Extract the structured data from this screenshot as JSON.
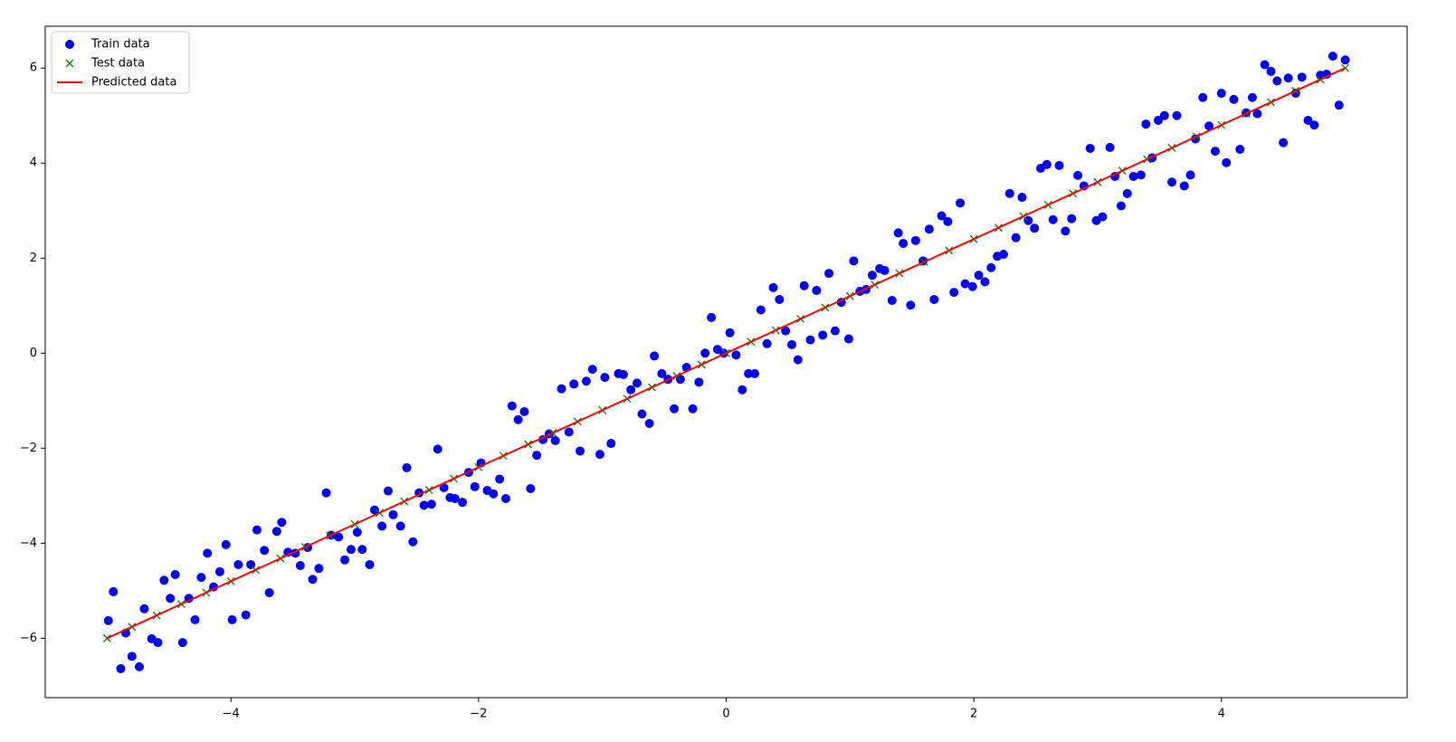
{
  "chart_data": {
    "type": "scatter",
    "xlim": [
      -5.5,
      5.5
    ],
    "ylim": [
      -7.25,
      6.88
    ],
    "xticks": [
      {
        "value": -4,
        "label": "−4"
      },
      {
        "value": -2,
        "label": "−2"
      },
      0,
      2,
      4
    ],
    "yticks": [
      {
        "value": -6,
        "label": "−6"
      },
      {
        "value": -4,
        "label": "−4"
      },
      {
        "value": -2,
        "label": "−2"
      },
      0,
      2,
      4,
      6
    ],
    "legend": "upper left",
    "series": [
      {
        "name": "Train data",
        "color": "#0000ff",
        "marker": "o",
        "x": [
          -4.99,
          -4.95,
          -4.89,
          -4.85,
          -4.8,
          -4.74,
          -4.7,
          -4.64,
          -4.59,
          -4.54,
          -4.49,
          -4.45,
          -4.39,
          -4.34,
          -4.29,
          -4.24,
          -4.19,
          -4.14,
          -4.09,
          -4.04,
          -3.99,
          -3.94,
          -3.88,
          -3.84,
          -3.79,
          -3.73,
          -3.69,
          -3.63,
          -3.59,
          -3.54,
          -3.48,
          -3.44,
          -3.38,
          -3.34,
          -3.29,
          -3.23,
          -3.19,
          -3.13,
          -3.08,
          -3.03,
          -2.98,
          -2.94,
          -2.88,
          -2.84,
          -2.78,
          -2.73,
          -2.69,
          -2.63,
          -2.58,
          -2.53,
          -2.48,
          -2.44,
          -2.38,
          -2.33,
          -2.28,
          -2.23,
          -2.19,
          -2.13,
          -2.08,
          -2.03,
          -1.98,
          -1.93,
          -1.88,
          -1.83,
          -1.78,
          -1.73,
          -1.68,
          -1.63,
          -1.58,
          -1.53,
          -1.48,
          -1.43,
          -1.38,
          -1.33,
          -1.27,
          -1.23,
          -1.18,
          -1.13,
          -1.08,
          -1.02,
          -0.98,
          -0.93,
          -0.87,
          -0.83,
          -0.77,
          -0.72,
          -0.68,
          -0.62,
          -0.58,
          -0.52,
          -0.47,
          -0.42,
          -0.37,
          -0.32,
          -0.27,
          -0.22,
          -0.17,
          -0.12,
          -0.07,
          -0.02,
          0.03,
          0.08,
          0.13,
          0.18,
          0.23,
          0.28,
          0.33,
          0.38,
          0.43,
          0.48,
          0.53,
          0.58,
          0.63,
          0.68,
          0.73,
          0.78,
          0.83,
          0.88,
          0.93,
          0.99,
          1.03,
          1.08,
          1.13,
          1.18,
          1.24,
          1.28,
          1.34,
          1.39,
          1.43,
          1.49,
          1.53,
          1.59,
          1.64,
          1.68,
          1.74,
          1.79,
          1.84,
          1.89,
          1.93,
          1.99,
          2.04,
          2.09,
          2.14,
          2.19,
          2.24,
          2.29,
          2.34,
          2.39,
          2.44,
          2.49,
          2.54,
          2.59,
          2.64,
          2.69,
          2.74,
          2.79,
          2.84,
          2.89,
          2.94,
          2.99,
          3.04,
          3.1,
          3.14,
          3.19,
          3.24,
          3.29,
          3.35,
          3.39,
          3.44,
          3.49,
          3.54,
          3.6,
          3.64,
          3.7,
          3.75,
          3.79,
          3.85,
          3.9,
          3.95,
          4.0,
          4.04,
          4.1,
          4.15,
          4.2,
          4.25,
          4.29,
          4.35,
          4.4,
          4.45,
          4.5,
          4.54,
          4.6,
          4.65,
          4.7,
          4.75,
          4.8,
          4.85,
          4.9,
          4.95,
          5.0
        ],
        "values": [
          -5.63,
          -5.02,
          -6.64,
          -5.89,
          -6.38,
          -6.6,
          -5.38,
          -6.01,
          -6.09,
          -4.78,
          -5.16,
          -4.66,
          -6.09,
          -5.16,
          -5.61,
          -4.72,
          -4.21,
          -4.92,
          -4.6,
          -4.03,
          -5.61,
          -4.45,
          -5.51,
          -4.45,
          -3.72,
          -4.15,
          -5.04,
          -3.75,
          -3.56,
          -4.19,
          -4.21,
          -4.47,
          -4.09,
          -4.76,
          -4.53,
          -2.94,
          -3.83,
          -3.87,
          -4.35,
          -4.13,
          -3.77,
          -4.13,
          -4.45,
          -3.3,
          -3.64,
          -2.9,
          -3.4,
          -3.64,
          -2.41,
          -3.97,
          -2.94,
          -3.2,
          -3.18,
          -2.02,
          -2.83,
          -3.04,
          -3.06,
          -3.14,
          -2.51,
          -2.81,
          -2.31,
          -2.89,
          -2.96,
          -2.65,
          -3.06,
          -1.11,
          -1.4,
          -1.23,
          -2.85,
          -2.15,
          -1.82,
          -1.7,
          -1.84,
          -0.75,
          -1.66,
          -0.65,
          -2.06,
          -0.59,
          -0.34,
          -2.13,
          -0.51,
          -1.9,
          -0.43,
          -0.45,
          -0.77,
          -0.63,
          -1.28,
          -1.48,
          -0.06,
          -0.43,
          -0.55,
          -1.17,
          -0.55,
          -0.3,
          -1.17,
          -0.61,
          0.0,
          0.75,
          0.08,
          0.0,
          0.43,
          -0.04,
          -0.77,
          -0.43,
          -0.43,
          0.91,
          0.2,
          1.38,
          1.13,
          0.47,
          0.18,
          -0.14,
          1.42,
          0.28,
          1.32,
          0.38,
          1.68,
          0.47,
          1.07,
          0.3,
          1.94,
          1.3,
          1.34,
          1.64,
          1.78,
          1.74,
          1.11,
          2.53,
          2.31,
          1.01,
          2.37,
          1.94,
          2.61,
          1.13,
          2.89,
          2.77,
          1.28,
          3.16,
          1.46,
          1.4,
          1.64,
          1.5,
          1.8,
          2.04,
          2.08,
          3.36,
          2.43,
          3.28,
          2.79,
          2.63,
          3.89,
          3.97,
          2.81,
          3.95,
          2.57,
          2.83,
          3.74,
          3.52,
          4.31,
          2.79,
          2.87,
          4.33,
          3.72,
          3.1,
          3.36,
          3.72,
          3.75,
          4.82,
          4.11,
          4.9,
          5.0,
          3.6,
          5.0,
          3.52,
          3.75,
          4.51,
          5.38,
          4.78,
          4.25,
          5.47,
          4.01,
          5.34,
          4.29,
          5.06,
          5.38,
          5.04,
          6.07,
          5.93,
          5.73,
          4.43,
          5.79,
          5.47,
          5.81,
          4.9,
          4.8,
          5.85,
          5.87,
          6.25,
          5.22,
          6.17
        ]
      },
      {
        "name": "Test data",
        "color": "#008000",
        "marker": "x",
        "x": [
          -5,
          -4.8,
          -4.6,
          -4.4,
          -4.2,
          -4,
          -3.8,
          -3.6,
          -3.4,
          -3.2,
          -3,
          -2.8,
          -2.6,
          -2.4,
          -2.2,
          -2,
          -1.8,
          -1.6,
          -1.4,
          -1.2,
          -1,
          -0.8,
          -0.6,
          -0.4,
          -0.2,
          0,
          0.2,
          0.4,
          0.6,
          0.8,
          1,
          1.2,
          1.4,
          1.6,
          1.8,
          2,
          2.2,
          2.4,
          2.6,
          2.8,
          3,
          3.2,
          3.4,
          3.6,
          3.8,
          4,
          4.2,
          4.4,
          4.6,
          4.8,
          5
        ],
        "values": [
          -6,
          -5.76,
          -5.52,
          -5.28,
          -5.04,
          -4.8,
          -4.56,
          -4.32,
          -4.08,
          -3.84,
          -3.6,
          -3.36,
          -3.12,
          -2.88,
          -2.64,
          -2.4,
          -2.16,
          -1.92,
          -1.68,
          -1.44,
          -1.2,
          -0.96,
          -0.72,
          -0.48,
          -0.24,
          0,
          0.24,
          0.48,
          0.72,
          0.96,
          1.2,
          1.44,
          1.68,
          1.92,
          2.16,
          2.4,
          2.64,
          2.88,
          3.12,
          3.36,
          3.6,
          3.84,
          4.08,
          4.32,
          4.56,
          4.8,
          5.04,
          5.28,
          5.52,
          5.76,
          6
        ]
      },
      {
        "name": "Predicted data",
        "color": "#ff0000",
        "marker": "line",
        "x": [
          -5,
          5
        ],
        "values": [
          -6,
          6
        ]
      }
    ]
  }
}
